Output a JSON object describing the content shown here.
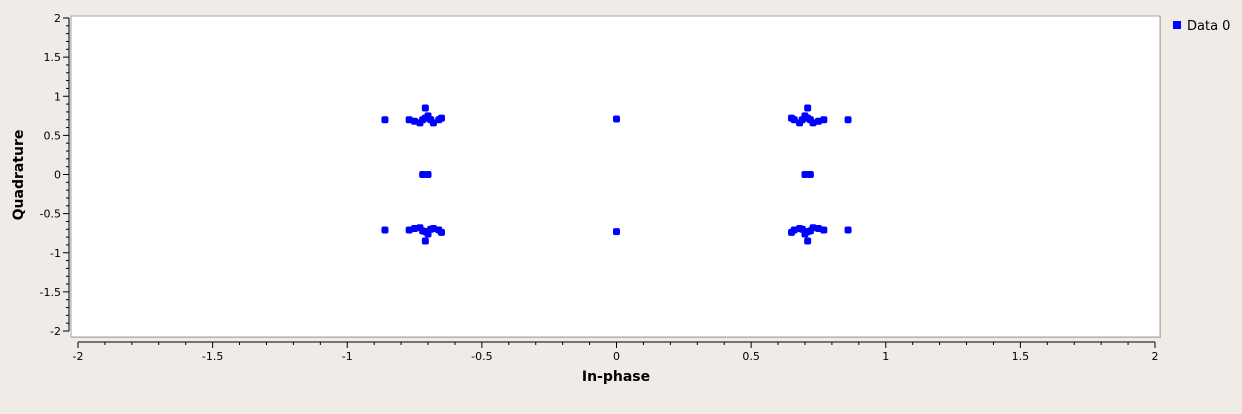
{
  "chart_data": {
    "type": "scatter",
    "xlabel": "In-phase",
    "ylabel": "Quadrature",
    "xlim": [
      -2,
      2
    ],
    "ylim": [
      -2,
      2
    ],
    "xticks": [
      {
        "value": -2,
        "label": "-2"
      },
      {
        "value": -1.5,
        "label": "-1.5"
      },
      {
        "value": -1,
        "label": "-1"
      },
      {
        "value": -0.5,
        "label": "-0.5"
      },
      {
        "value": 0,
        "label": "0"
      },
      {
        "value": 0.5,
        "label": "0.5"
      },
      {
        "value": 1,
        "label": "1"
      },
      {
        "value": 1.5,
        "label": "1.5"
      },
      {
        "value": 2,
        "label": "2"
      }
    ],
    "yticks": [
      {
        "value": 2,
        "label": "2"
      },
      {
        "value": 1.5,
        "label": "1.5"
      },
      {
        "value": 1,
        "label": "1"
      },
      {
        "value": 0.5,
        "label": "0.5"
      },
      {
        "value": 0,
        "label": "0"
      },
      {
        "value": -0.5,
        "label": "-0.5"
      },
      {
        "value": -1,
        "label": "-1"
      },
      {
        "value": -1.5,
        "label": "-1.5"
      },
      {
        "value": -2,
        "label": "-2"
      }
    ],
    "grid": false,
    "legend_position": "top-right",
    "series": [
      {
        "name": "Data 0",
        "color": "#0000ff",
        "points": [
          [
            -0.86,
            0.7
          ],
          [
            -0.77,
            0.7
          ],
          [
            -0.75,
            0.68
          ],
          [
            -0.73,
            0.66
          ],
          [
            -0.72,
            0.7
          ],
          [
            -0.71,
            0.85
          ],
          [
            -0.7,
            0.75
          ],
          [
            -0.69,
            0.7
          ],
          [
            -0.68,
            0.66
          ],
          [
            -0.66,
            0.7
          ],
          [
            -0.65,
            0.72
          ],
          [
            -0.71,
            0.72
          ],
          [
            -0.72,
            0.0
          ],
          [
            -0.7,
            0.0
          ],
          [
            -0.86,
            -0.71
          ],
          [
            -0.77,
            -0.71
          ],
          [
            -0.75,
            -0.69
          ],
          [
            -0.73,
            -0.68
          ],
          [
            -0.72,
            -0.72
          ],
          [
            -0.71,
            -0.85
          ],
          [
            -0.7,
            -0.76
          ],
          [
            -0.69,
            -0.7
          ],
          [
            -0.68,
            -0.69
          ],
          [
            -0.66,
            -0.71
          ],
          [
            -0.65,
            -0.74
          ],
          [
            -0.71,
            -0.73
          ],
          [
            0.0,
            0.71
          ],
          [
            0.0,
            -0.73
          ],
          [
            0.86,
            0.7
          ],
          [
            0.77,
            0.7
          ],
          [
            0.75,
            0.68
          ],
          [
            0.73,
            0.66
          ],
          [
            0.72,
            0.7
          ],
          [
            0.71,
            0.85
          ],
          [
            0.7,
            0.75
          ],
          [
            0.69,
            0.7
          ],
          [
            0.68,
            0.66
          ],
          [
            0.66,
            0.7
          ],
          [
            0.65,
            0.72
          ],
          [
            0.71,
            0.72
          ],
          [
            0.7,
            0.0
          ],
          [
            0.72,
            0.0
          ],
          [
            0.86,
            -0.71
          ],
          [
            0.77,
            -0.71
          ],
          [
            0.75,
            -0.69
          ],
          [
            0.73,
            -0.68
          ],
          [
            0.72,
            -0.72
          ],
          [
            0.71,
            -0.85
          ],
          [
            0.7,
            -0.76
          ],
          [
            0.69,
            -0.7
          ],
          [
            0.68,
            -0.69
          ],
          [
            0.66,
            -0.71
          ],
          [
            0.65,
            -0.74
          ],
          [
            0.71,
            -0.73
          ]
        ]
      }
    ]
  }
}
